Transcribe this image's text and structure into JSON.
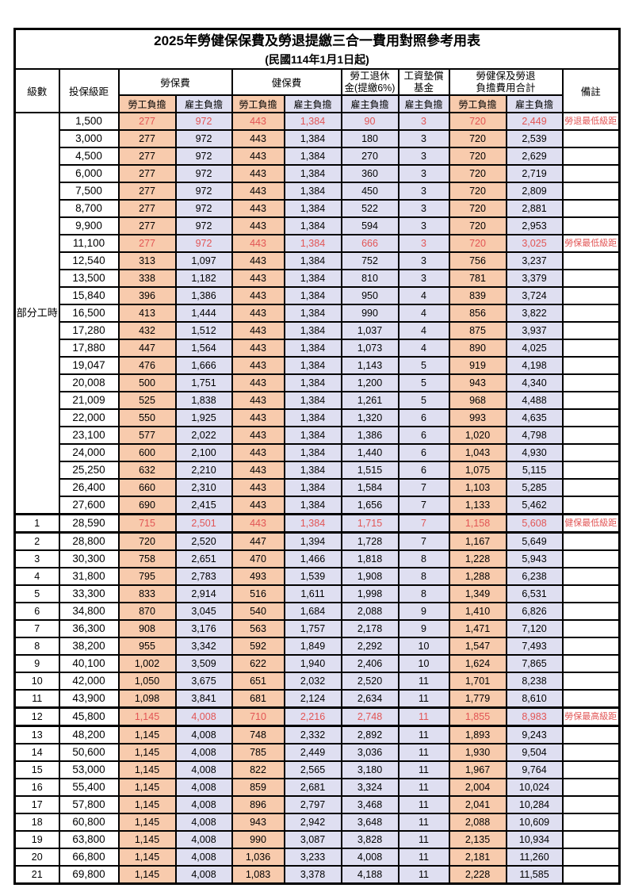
{
  "table": {
    "title": "2025年勞健保保費及勞退提繳三合一費用對照參考用表",
    "subtitle": "(民國114年1月1日起)",
    "colors": {
      "employee_bg": "#F8CBAD",
      "employer_bg": "#DFDFF1",
      "highlight_text": "#E25555",
      "border": "#000000"
    },
    "header": {
      "level": "級數",
      "bracket": "投保級距",
      "labor_insurance": "勞保費",
      "health_insurance": "健保費",
      "pension_line1": "勞工退休",
      "pension_line2": "金(提繳6%)",
      "wage_fund_line1": "工資墊償",
      "wage_fund_line2": "基金",
      "total_line1": "勞健保及勞退",
      "total_line2": "負擔費用合計",
      "remark": "備註",
      "employee": "勞工負擔",
      "employer": "雇主負擔"
    },
    "part_time_label": "部分工時",
    "part_time_rowspan": 23,
    "rows": [
      {
        "level": "",
        "bracket": "1,500",
        "li_emp": "277",
        "li_er": "972",
        "hi_emp": "443",
        "hi_er": "1,384",
        "pension": "90",
        "fund": "3",
        "sum_emp": "720",
        "sum_er": "2,449",
        "remark": "勞退最低級距",
        "red": true,
        "thick": false
      },
      {
        "level": "",
        "bracket": "3,000",
        "li_emp": "277",
        "li_er": "972",
        "hi_emp": "443",
        "hi_er": "1,384",
        "pension": "180",
        "fund": "3",
        "sum_emp": "720",
        "sum_er": "2,539",
        "remark": "",
        "red": false,
        "thick": false
      },
      {
        "level": "",
        "bracket": "4,500",
        "li_emp": "277",
        "li_er": "972",
        "hi_emp": "443",
        "hi_er": "1,384",
        "pension": "270",
        "fund": "3",
        "sum_emp": "720",
        "sum_er": "2,629",
        "remark": "",
        "red": false,
        "thick": false
      },
      {
        "level": "",
        "bracket": "6,000",
        "li_emp": "277",
        "li_er": "972",
        "hi_emp": "443",
        "hi_er": "1,384",
        "pension": "360",
        "fund": "3",
        "sum_emp": "720",
        "sum_er": "2,719",
        "remark": "",
        "red": false,
        "thick": false
      },
      {
        "level": "",
        "bracket": "7,500",
        "li_emp": "277",
        "li_er": "972",
        "hi_emp": "443",
        "hi_er": "1,384",
        "pension": "450",
        "fund": "3",
        "sum_emp": "720",
        "sum_er": "2,809",
        "remark": "",
        "red": false,
        "thick": false
      },
      {
        "level": "",
        "bracket": "8,700",
        "li_emp": "277",
        "li_er": "972",
        "hi_emp": "443",
        "hi_er": "1,384",
        "pension": "522",
        "fund": "3",
        "sum_emp": "720",
        "sum_er": "2,881",
        "remark": "",
        "red": false,
        "thick": false
      },
      {
        "level": "",
        "bracket": "9,900",
        "li_emp": "277",
        "li_er": "972",
        "hi_emp": "443",
        "hi_er": "1,384",
        "pension": "594",
        "fund": "3",
        "sum_emp": "720",
        "sum_er": "2,953",
        "remark": "",
        "red": false,
        "thick": false
      },
      {
        "level": "",
        "bracket": "11,100",
        "li_emp": "277",
        "li_er": "972",
        "hi_emp": "443",
        "hi_er": "1,384",
        "pension": "666",
        "fund": "3",
        "sum_emp": "720",
        "sum_er": "3,025",
        "remark": "勞保最低級距",
        "red": true,
        "thick": false
      },
      {
        "level": "",
        "bracket": "12,540",
        "li_emp": "313",
        "li_er": "1,097",
        "hi_emp": "443",
        "hi_er": "1,384",
        "pension": "752",
        "fund": "3",
        "sum_emp": "756",
        "sum_er": "3,237",
        "remark": "",
        "red": false,
        "thick": false
      },
      {
        "level": "",
        "bracket": "13,500",
        "li_emp": "338",
        "li_er": "1,182",
        "hi_emp": "443",
        "hi_er": "1,384",
        "pension": "810",
        "fund": "3",
        "sum_emp": "781",
        "sum_er": "3,379",
        "remark": "",
        "red": false,
        "thick": false
      },
      {
        "level": "",
        "bracket": "15,840",
        "li_emp": "396",
        "li_er": "1,386",
        "hi_emp": "443",
        "hi_er": "1,384",
        "pension": "950",
        "fund": "4",
        "sum_emp": "839",
        "sum_er": "3,724",
        "remark": "",
        "red": false,
        "thick": false
      },
      {
        "level": "",
        "bracket": "16,500",
        "li_emp": "413",
        "li_er": "1,444",
        "hi_emp": "443",
        "hi_er": "1,384",
        "pension": "990",
        "fund": "4",
        "sum_emp": "856",
        "sum_er": "3,822",
        "remark": "",
        "red": false,
        "thick": false
      },
      {
        "level": "",
        "bracket": "17,280",
        "li_emp": "432",
        "li_er": "1,512",
        "hi_emp": "443",
        "hi_er": "1,384",
        "pension": "1,037",
        "fund": "4",
        "sum_emp": "875",
        "sum_er": "3,937",
        "remark": "",
        "red": false,
        "thick": false
      },
      {
        "level": "",
        "bracket": "17,880",
        "li_emp": "447",
        "li_er": "1,564",
        "hi_emp": "443",
        "hi_er": "1,384",
        "pension": "1,073",
        "fund": "4",
        "sum_emp": "890",
        "sum_er": "4,025",
        "remark": "",
        "red": false,
        "thick": false
      },
      {
        "level": "",
        "bracket": "19,047",
        "li_emp": "476",
        "li_er": "1,666",
        "hi_emp": "443",
        "hi_er": "1,384",
        "pension": "1,143",
        "fund": "5",
        "sum_emp": "919",
        "sum_er": "4,198",
        "remark": "",
        "red": false,
        "thick": false
      },
      {
        "level": "",
        "bracket": "20,008",
        "li_emp": "500",
        "li_er": "1,751",
        "hi_emp": "443",
        "hi_er": "1,384",
        "pension": "1,200",
        "fund": "5",
        "sum_emp": "943",
        "sum_er": "4,340",
        "remark": "",
        "red": false,
        "thick": false
      },
      {
        "level": "",
        "bracket": "21,009",
        "li_emp": "525",
        "li_er": "1,838",
        "hi_emp": "443",
        "hi_er": "1,384",
        "pension": "1,261",
        "fund": "5",
        "sum_emp": "968",
        "sum_er": "4,488",
        "remark": "",
        "red": false,
        "thick": false
      },
      {
        "level": "",
        "bracket": "22,000",
        "li_emp": "550",
        "li_er": "1,925",
        "hi_emp": "443",
        "hi_er": "1,384",
        "pension": "1,320",
        "fund": "6",
        "sum_emp": "993",
        "sum_er": "4,635",
        "remark": "",
        "red": false,
        "thick": false
      },
      {
        "level": "",
        "bracket": "23,100",
        "li_emp": "577",
        "li_er": "2,022",
        "hi_emp": "443",
        "hi_er": "1,384",
        "pension": "1,386",
        "fund": "6",
        "sum_emp": "1,020",
        "sum_er": "4,798",
        "remark": "",
        "red": false,
        "thick": false
      },
      {
        "level": "",
        "bracket": "24,000",
        "li_emp": "600",
        "li_er": "2,100",
        "hi_emp": "443",
        "hi_er": "1,384",
        "pension": "1,440",
        "fund": "6",
        "sum_emp": "1,043",
        "sum_er": "4,930",
        "remark": "",
        "red": false,
        "thick": false
      },
      {
        "level": "",
        "bracket": "25,250",
        "li_emp": "632",
        "li_er": "2,210",
        "hi_emp": "443",
        "hi_er": "1,384",
        "pension": "1,515",
        "fund": "6",
        "sum_emp": "1,075",
        "sum_er": "5,115",
        "remark": "",
        "red": false,
        "thick": false
      },
      {
        "level": "",
        "bracket": "26,400",
        "li_emp": "660",
        "li_er": "2,310",
        "hi_emp": "443",
        "hi_er": "1,384",
        "pension": "1,584",
        "fund": "7",
        "sum_emp": "1,103",
        "sum_er": "5,285",
        "remark": "",
        "red": false,
        "thick": false
      },
      {
        "level": "",
        "bracket": "27,600",
        "li_emp": "690",
        "li_er": "2,415",
        "hi_emp": "443",
        "hi_er": "1,384",
        "pension": "1,656",
        "fund": "7",
        "sum_emp": "1,133",
        "sum_er": "5,462",
        "remark": "",
        "red": false,
        "thick": false
      },
      {
        "level": "1",
        "bracket": "28,590",
        "li_emp": "715",
        "li_er": "2,501",
        "hi_emp": "443",
        "hi_er": "1,384",
        "pension": "1,715",
        "fund": "7",
        "sum_emp": "1,158",
        "sum_er": "5,608",
        "remark": "健保最低級距",
        "red": true,
        "thick": true
      },
      {
        "level": "2",
        "bracket": "28,800",
        "li_emp": "720",
        "li_er": "2,520",
        "hi_emp": "447",
        "hi_er": "1,394",
        "pension": "1,728",
        "fund": "7",
        "sum_emp": "1,167",
        "sum_er": "5,649",
        "remark": "",
        "red": false,
        "thick": false
      },
      {
        "level": "3",
        "bracket": "30,300",
        "li_emp": "758",
        "li_er": "2,651",
        "hi_emp": "470",
        "hi_er": "1,466",
        "pension": "1,818",
        "fund": "8",
        "sum_emp": "1,228",
        "sum_er": "5,943",
        "remark": "",
        "red": false,
        "thick": false
      },
      {
        "level": "4",
        "bracket": "31,800",
        "li_emp": "795",
        "li_er": "2,783",
        "hi_emp": "493",
        "hi_er": "1,539",
        "pension": "1,908",
        "fund": "8",
        "sum_emp": "1,288",
        "sum_er": "6,238",
        "remark": "",
        "red": false,
        "thick": false
      },
      {
        "level": "5",
        "bracket": "33,300",
        "li_emp": "833",
        "li_er": "2,914",
        "hi_emp": "516",
        "hi_er": "1,611",
        "pension": "1,998",
        "fund": "8",
        "sum_emp": "1,349",
        "sum_er": "6,531",
        "remark": "",
        "red": false,
        "thick": false
      },
      {
        "level": "6",
        "bracket": "34,800",
        "li_emp": "870",
        "li_er": "3,045",
        "hi_emp": "540",
        "hi_er": "1,684",
        "pension": "2,088",
        "fund": "9",
        "sum_emp": "1,410",
        "sum_er": "6,826",
        "remark": "",
        "red": false,
        "thick": false
      },
      {
        "level": "7",
        "bracket": "36,300",
        "li_emp": "908",
        "li_er": "3,176",
        "hi_emp": "563",
        "hi_er": "1,757",
        "pension": "2,178",
        "fund": "9",
        "sum_emp": "1,471",
        "sum_er": "7,120",
        "remark": "",
        "red": false,
        "thick": false
      },
      {
        "level": "8",
        "bracket": "38,200",
        "li_emp": "955",
        "li_er": "3,342",
        "hi_emp": "592",
        "hi_er": "1,849",
        "pension": "2,292",
        "fund": "10",
        "sum_emp": "1,547",
        "sum_er": "7,493",
        "remark": "",
        "red": false,
        "thick": false
      },
      {
        "level": "9",
        "bracket": "40,100",
        "li_emp": "1,002",
        "li_er": "3,509",
        "hi_emp": "622",
        "hi_er": "1,940",
        "pension": "2,406",
        "fund": "10",
        "sum_emp": "1,624",
        "sum_er": "7,865",
        "remark": "",
        "red": false,
        "thick": false
      },
      {
        "level": "10",
        "bracket": "42,000",
        "li_emp": "1,050",
        "li_er": "3,675",
        "hi_emp": "651",
        "hi_er": "2,032",
        "pension": "2,520",
        "fund": "11",
        "sum_emp": "1,701",
        "sum_er": "8,238",
        "remark": "",
        "red": false,
        "thick": false
      },
      {
        "level": "11",
        "bracket": "43,900",
        "li_emp": "1,098",
        "li_er": "3,841",
        "hi_emp": "681",
        "hi_er": "2,124",
        "pension": "2,634",
        "fund": "11",
        "sum_emp": "1,779",
        "sum_er": "8,610",
        "remark": "",
        "red": false,
        "thick": false
      },
      {
        "level": "12",
        "bracket": "45,800",
        "li_emp": "1,145",
        "li_er": "4,008",
        "hi_emp": "710",
        "hi_er": "2,216",
        "pension": "2,748",
        "fund": "11",
        "sum_emp": "1,855",
        "sum_er": "8,983",
        "remark": "勞保最高級距",
        "red": true,
        "thick": true
      },
      {
        "level": "13",
        "bracket": "48,200",
        "li_emp": "1,145",
        "li_er": "4,008",
        "hi_emp": "748",
        "hi_er": "2,332",
        "pension": "2,892",
        "fund": "11",
        "sum_emp": "1,893",
        "sum_er": "9,243",
        "remark": "",
        "red": false,
        "thick": false
      },
      {
        "level": "14",
        "bracket": "50,600",
        "li_emp": "1,145",
        "li_er": "4,008",
        "hi_emp": "785",
        "hi_er": "2,449",
        "pension": "3,036",
        "fund": "11",
        "sum_emp": "1,930",
        "sum_er": "9,504",
        "remark": "",
        "red": false,
        "thick": false
      },
      {
        "level": "15",
        "bracket": "53,000",
        "li_emp": "1,145",
        "li_er": "4,008",
        "hi_emp": "822",
        "hi_er": "2,565",
        "pension": "3,180",
        "fund": "11",
        "sum_emp": "1,967",
        "sum_er": "9,764",
        "remark": "",
        "red": false,
        "thick": false
      },
      {
        "level": "16",
        "bracket": "55,400",
        "li_emp": "1,145",
        "li_er": "4,008",
        "hi_emp": "859",
        "hi_er": "2,681",
        "pension": "3,324",
        "fund": "11",
        "sum_emp": "2,004",
        "sum_er": "10,024",
        "remark": "",
        "red": false,
        "thick": false
      },
      {
        "level": "17",
        "bracket": "57,800",
        "li_emp": "1,145",
        "li_er": "4,008",
        "hi_emp": "896",
        "hi_er": "2,797",
        "pension": "3,468",
        "fund": "11",
        "sum_emp": "2,041",
        "sum_er": "10,284",
        "remark": "",
        "red": false,
        "thick": false
      },
      {
        "level": "18",
        "bracket": "60,800",
        "li_emp": "1,145",
        "li_er": "4,008",
        "hi_emp": "943",
        "hi_er": "2,942",
        "pension": "3,648",
        "fund": "11",
        "sum_emp": "2,088",
        "sum_er": "10,609",
        "remark": "",
        "red": false,
        "thick": false
      },
      {
        "level": "19",
        "bracket": "63,800",
        "li_emp": "1,145",
        "li_er": "4,008",
        "hi_emp": "990",
        "hi_er": "3,087",
        "pension": "3,828",
        "fund": "11",
        "sum_emp": "2,135",
        "sum_er": "10,934",
        "remark": "",
        "red": false,
        "thick": false
      },
      {
        "level": "20",
        "bracket": "66,800",
        "li_emp": "1,145",
        "li_er": "4,008",
        "hi_emp": "1,036",
        "hi_er": "3,233",
        "pension": "4,008",
        "fund": "11",
        "sum_emp": "2,181",
        "sum_er": "11,260",
        "remark": "",
        "red": false,
        "thick": false
      },
      {
        "level": "21",
        "bracket": "69,800",
        "li_emp": "1,145",
        "li_er": "4,008",
        "hi_emp": "1,083",
        "hi_er": "3,378",
        "pension": "4,188",
        "fund": "11",
        "sum_emp": "2,228",
        "sum_er": "11,585",
        "remark": "",
        "red": false,
        "thick": false
      }
    ]
  }
}
